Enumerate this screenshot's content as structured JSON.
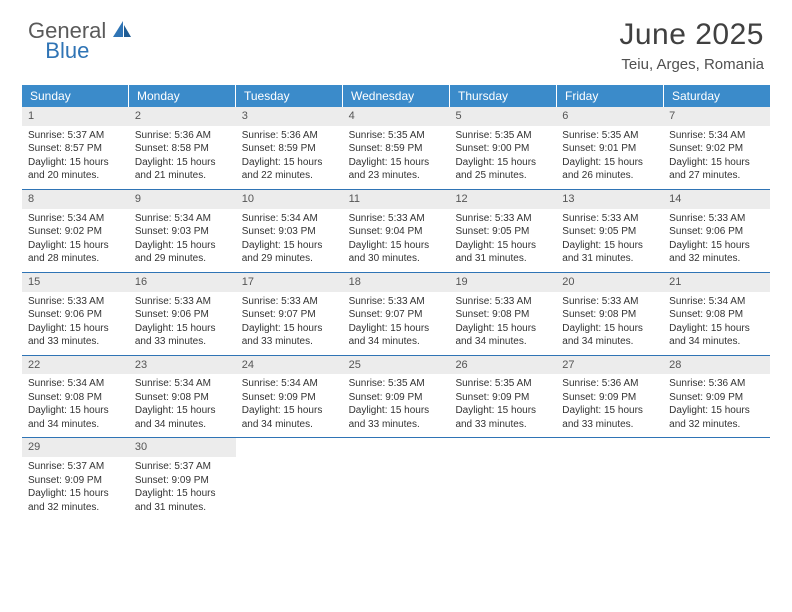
{
  "logo": {
    "general": "General",
    "blue": "Blue"
  },
  "title": "June 2025",
  "location": "Teiu, Arges, Romania",
  "colors": {
    "header_bg": "#3b8bca",
    "header_text": "#ffffff",
    "rule": "#2f74b5",
    "daynum_bg": "#ececec",
    "text": "#333333",
    "logo_gray": "#5a5a5a",
    "logo_blue": "#2f74b5"
  },
  "dow": [
    "Sunday",
    "Monday",
    "Tuesday",
    "Wednesday",
    "Thursday",
    "Friday",
    "Saturday"
  ],
  "weeks": [
    [
      {
        "n": "1",
        "sr": "Sunrise: 5:37 AM",
        "ss": "Sunset: 8:57 PM",
        "d1": "Daylight: 15 hours",
        "d2": "and 20 minutes."
      },
      {
        "n": "2",
        "sr": "Sunrise: 5:36 AM",
        "ss": "Sunset: 8:58 PM",
        "d1": "Daylight: 15 hours",
        "d2": "and 21 minutes."
      },
      {
        "n": "3",
        "sr": "Sunrise: 5:36 AM",
        "ss": "Sunset: 8:59 PM",
        "d1": "Daylight: 15 hours",
        "d2": "and 22 minutes."
      },
      {
        "n": "4",
        "sr": "Sunrise: 5:35 AM",
        "ss": "Sunset: 8:59 PM",
        "d1": "Daylight: 15 hours",
        "d2": "and 23 minutes."
      },
      {
        "n": "5",
        "sr": "Sunrise: 5:35 AM",
        "ss": "Sunset: 9:00 PM",
        "d1": "Daylight: 15 hours",
        "d2": "and 25 minutes."
      },
      {
        "n": "6",
        "sr": "Sunrise: 5:35 AM",
        "ss": "Sunset: 9:01 PM",
        "d1": "Daylight: 15 hours",
        "d2": "and 26 minutes."
      },
      {
        "n": "7",
        "sr": "Sunrise: 5:34 AM",
        "ss": "Sunset: 9:02 PM",
        "d1": "Daylight: 15 hours",
        "d2": "and 27 minutes."
      }
    ],
    [
      {
        "n": "8",
        "sr": "Sunrise: 5:34 AM",
        "ss": "Sunset: 9:02 PM",
        "d1": "Daylight: 15 hours",
        "d2": "and 28 minutes."
      },
      {
        "n": "9",
        "sr": "Sunrise: 5:34 AM",
        "ss": "Sunset: 9:03 PM",
        "d1": "Daylight: 15 hours",
        "d2": "and 29 minutes."
      },
      {
        "n": "10",
        "sr": "Sunrise: 5:34 AM",
        "ss": "Sunset: 9:03 PM",
        "d1": "Daylight: 15 hours",
        "d2": "and 29 minutes."
      },
      {
        "n": "11",
        "sr": "Sunrise: 5:33 AM",
        "ss": "Sunset: 9:04 PM",
        "d1": "Daylight: 15 hours",
        "d2": "and 30 minutes."
      },
      {
        "n": "12",
        "sr": "Sunrise: 5:33 AM",
        "ss": "Sunset: 9:05 PM",
        "d1": "Daylight: 15 hours",
        "d2": "and 31 minutes."
      },
      {
        "n": "13",
        "sr": "Sunrise: 5:33 AM",
        "ss": "Sunset: 9:05 PM",
        "d1": "Daylight: 15 hours",
        "d2": "and 31 minutes."
      },
      {
        "n": "14",
        "sr": "Sunrise: 5:33 AM",
        "ss": "Sunset: 9:06 PM",
        "d1": "Daylight: 15 hours",
        "d2": "and 32 minutes."
      }
    ],
    [
      {
        "n": "15",
        "sr": "Sunrise: 5:33 AM",
        "ss": "Sunset: 9:06 PM",
        "d1": "Daylight: 15 hours",
        "d2": "and 33 minutes."
      },
      {
        "n": "16",
        "sr": "Sunrise: 5:33 AM",
        "ss": "Sunset: 9:06 PM",
        "d1": "Daylight: 15 hours",
        "d2": "and 33 minutes."
      },
      {
        "n": "17",
        "sr": "Sunrise: 5:33 AM",
        "ss": "Sunset: 9:07 PM",
        "d1": "Daylight: 15 hours",
        "d2": "and 33 minutes."
      },
      {
        "n": "18",
        "sr": "Sunrise: 5:33 AM",
        "ss": "Sunset: 9:07 PM",
        "d1": "Daylight: 15 hours",
        "d2": "and 34 minutes."
      },
      {
        "n": "19",
        "sr": "Sunrise: 5:33 AM",
        "ss": "Sunset: 9:08 PM",
        "d1": "Daylight: 15 hours",
        "d2": "and 34 minutes."
      },
      {
        "n": "20",
        "sr": "Sunrise: 5:33 AM",
        "ss": "Sunset: 9:08 PM",
        "d1": "Daylight: 15 hours",
        "d2": "and 34 minutes."
      },
      {
        "n": "21",
        "sr": "Sunrise: 5:34 AM",
        "ss": "Sunset: 9:08 PM",
        "d1": "Daylight: 15 hours",
        "d2": "and 34 minutes."
      }
    ],
    [
      {
        "n": "22",
        "sr": "Sunrise: 5:34 AM",
        "ss": "Sunset: 9:08 PM",
        "d1": "Daylight: 15 hours",
        "d2": "and 34 minutes."
      },
      {
        "n": "23",
        "sr": "Sunrise: 5:34 AM",
        "ss": "Sunset: 9:08 PM",
        "d1": "Daylight: 15 hours",
        "d2": "and 34 minutes."
      },
      {
        "n": "24",
        "sr": "Sunrise: 5:34 AM",
        "ss": "Sunset: 9:09 PM",
        "d1": "Daylight: 15 hours",
        "d2": "and 34 minutes."
      },
      {
        "n": "25",
        "sr": "Sunrise: 5:35 AM",
        "ss": "Sunset: 9:09 PM",
        "d1": "Daylight: 15 hours",
        "d2": "and 33 minutes."
      },
      {
        "n": "26",
        "sr": "Sunrise: 5:35 AM",
        "ss": "Sunset: 9:09 PM",
        "d1": "Daylight: 15 hours",
        "d2": "and 33 minutes."
      },
      {
        "n": "27",
        "sr": "Sunrise: 5:36 AM",
        "ss": "Sunset: 9:09 PM",
        "d1": "Daylight: 15 hours",
        "d2": "and 33 minutes."
      },
      {
        "n": "28",
        "sr": "Sunrise: 5:36 AM",
        "ss": "Sunset: 9:09 PM",
        "d1": "Daylight: 15 hours",
        "d2": "and 32 minutes."
      }
    ],
    [
      {
        "n": "29",
        "sr": "Sunrise: 5:37 AM",
        "ss": "Sunset: 9:09 PM",
        "d1": "Daylight: 15 hours",
        "d2": "and 32 minutes."
      },
      {
        "n": "30",
        "sr": "Sunrise: 5:37 AM",
        "ss": "Sunset: 9:09 PM",
        "d1": "Daylight: 15 hours",
        "d2": "and 31 minutes."
      },
      null,
      null,
      null,
      null,
      null
    ]
  ]
}
